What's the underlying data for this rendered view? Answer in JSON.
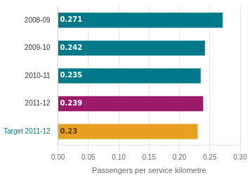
{
  "chart_data": {
    "type": "bar",
    "orientation": "horizontal",
    "categories": [
      "2008-09",
      "2009-10",
      "2010-11",
      "2011-12",
      "Target 2011-12"
    ],
    "values": [
      0.271,
      0.242,
      0.235,
      0.239,
      0.23
    ],
    "colors": [
      "#007a8a",
      "#007a8a",
      "#007a8a",
      "#9b1b6a",
      "#e8a020"
    ],
    "xlabel": "Passengers per service kilometre",
    "xlim": [
      0,
      0.3
    ],
    "xticks": [
      {
        "value": 0.0,
        "label": "0.00"
      },
      {
        "value": 0.05,
        "label": "0.05"
      },
      {
        "value": 0.1,
        "label": "0.10"
      },
      {
        "value": 0.15,
        "label": "0.15"
      },
      {
        "value": 0.2,
        "label": "0.20"
      },
      {
        "value": 0.25,
        "label": "0.25"
      },
      {
        "value": 0.3,
        "label": "0.30"
      }
    ],
    "grid": true,
    "data_labels": true
  }
}
